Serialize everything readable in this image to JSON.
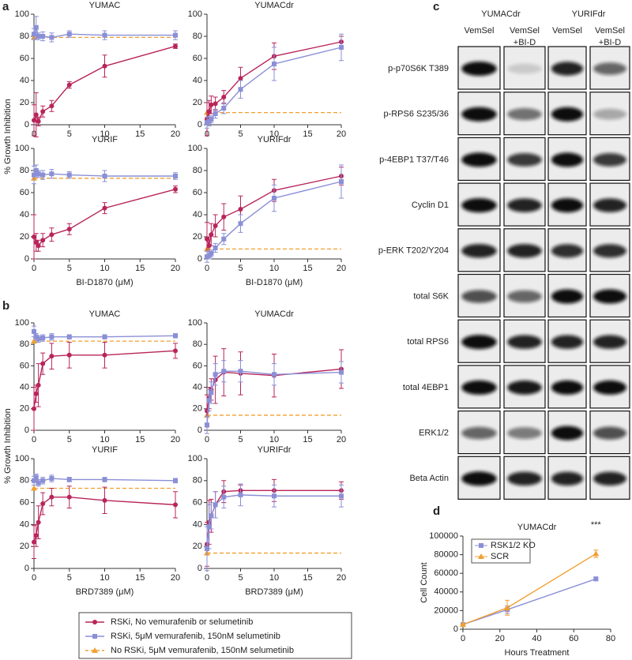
{
  "figure": {
    "panel_labels": [
      "a",
      "b",
      "c",
      "d"
    ]
  },
  "legend": {
    "entries": [
      {
        "name": "RSKi, No vemurafenib or selumetinib",
        "color": "#b8255a"
      },
      {
        "name": "RSKi, 5μM vemurafenib, 150nM selumetinib",
        "color": "#8a8fd6"
      },
      {
        "name": "No RSKi, 5μM vemurafenib, 150nM selumetinib",
        "color": "#f0a030"
      }
    ]
  },
  "chart_data": [
    {
      "type": "line",
      "title": "YUMAC",
      "ylabel": "% Growth Inhibition",
      "x": [
        0,
        0.31,
        0.63,
        1.25,
        2.5,
        5,
        10,
        20
      ],
      "series": [
        {
          "values": [
            4,
            9,
            3,
            12,
            17,
            36,
            53,
            71
          ],
          "errors": [
            14,
            20,
            4,
            5,
            5,
            3,
            10,
            2
          ]
        },
        {
          "values": [
            82,
            88,
            80,
            80,
            79,
            82,
            81,
            81
          ],
          "errors": [
            5,
            10,
            3,
            4,
            4,
            3,
            4,
            4
          ]
        }
      ],
      "reference": 79,
      "xlim": [
        0,
        20
      ],
      "ylim": [
        0,
        100
      ],
      "xticks": [
        0,
        5,
        10,
        15,
        20
      ],
      "yticks": [
        0,
        20,
        40,
        60,
        80,
        100
      ]
    },
    {
      "type": "line",
      "title": "YUMACdr",
      "x": [
        0,
        0.31,
        0.63,
        1.25,
        2.5,
        5,
        10,
        20
      ],
      "series": [
        {
          "values": [
            5,
            12,
            18,
            19,
            25,
            42,
            62,
            75
          ],
          "errors": [
            15,
            10,
            8,
            6,
            6,
            10,
            12,
            5
          ]
        },
        {
          "values": [
            2,
            3,
            5,
            10,
            15,
            32,
            55,
            70
          ],
          "errors": [
            5,
            4,
            3,
            4,
            5,
            8,
            15,
            12
          ]
        }
      ],
      "reference": 11,
      "xlim": [
        0,
        20
      ],
      "ylim": [
        0,
        100
      ],
      "xticks": [
        0,
        5,
        10,
        15,
        20
      ],
      "yticks": [
        0,
        20,
        40,
        60,
        80,
        100
      ]
    },
    {
      "type": "line",
      "title": "YURIF",
      "xlabel": "BI-D1870 (μM)",
      "x": [
        0,
        0.31,
        0.63,
        1.25,
        2.5,
        5,
        10,
        20
      ],
      "series": [
        {
          "values": [
            20,
            15,
            12,
            17,
            22,
            27,
            46,
            63
          ],
          "errors": [
            20,
            8,
            5,
            6,
            6,
            5,
            5,
            3
          ]
        },
        {
          "values": [
            76,
            80,
            77,
            76,
            77,
            76,
            75,
            75
          ],
          "errors": [
            8,
            5,
            3,
            4,
            4,
            3,
            5,
            3
          ]
        }
      ],
      "reference": 73,
      "xlim": [
        0,
        20
      ],
      "ylim": [
        0,
        100
      ],
      "xticks": [
        0,
        5,
        10,
        15,
        20
      ],
      "yticks": [
        0,
        20,
        40,
        60,
        80,
        100
      ]
    },
    {
      "type": "line",
      "title": "YURIFdr",
      "xlabel": "BI-D1870 (μM)",
      "x": [
        0,
        0.31,
        0.63,
        1.25,
        2.5,
        5,
        10,
        20
      ],
      "series": [
        {
          "values": [
            18,
            12,
            22,
            30,
            38,
            45,
            62,
            75
          ],
          "errors": [
            15,
            8,
            10,
            10,
            12,
            12,
            10,
            8
          ]
        },
        {
          "values": [
            2,
            3,
            5,
            10,
            18,
            32,
            55,
            70
          ],
          "errors": [
            5,
            3,
            3,
            4,
            5,
            8,
            12,
            15
          ]
        }
      ],
      "reference": 9,
      "xlim": [
        0,
        20
      ],
      "ylim": [
        0,
        100
      ],
      "xticks": [
        0,
        5,
        10,
        15,
        20
      ],
      "yticks": [
        0,
        20,
        40,
        60,
        80,
        100
      ]
    },
    {
      "type": "line",
      "title": "YUMAC",
      "ylabel": "% Growth Inhibition",
      "x": [
        0,
        0.31,
        0.63,
        1.25,
        2.5,
        5,
        10,
        20
      ],
      "series": [
        {
          "values": [
            20,
            34,
            42,
            62,
            69,
            70,
            70,
            74
          ],
          "errors": [
            20,
            8,
            20,
            10,
            12,
            12,
            12,
            7
          ]
        },
        {
          "values": [
            92,
            87,
            85,
            86,
            87,
            87,
            87,
            88
          ],
          "errors": [
            5,
            3,
            3,
            3,
            3,
            2,
            2,
            2
          ]
        }
      ],
      "reference": 83,
      "xlim": [
        0,
        20
      ],
      "ylim": [
        0,
        100
      ],
      "xticks": [
        0,
        5,
        10,
        15,
        20
      ],
      "yticks": [
        0,
        20,
        40,
        60,
        80,
        100
      ]
    },
    {
      "type": "line",
      "title": "YUMACdr",
      "x": [
        0,
        0.31,
        0.63,
        1.25,
        2.5,
        5,
        10,
        20
      ],
      "series": [
        {
          "values": [
            18,
            30,
            38,
            47,
            54,
            53,
            51,
            57
          ],
          "errors": [
            15,
            10,
            10,
            22,
            22,
            20,
            20,
            18
          ]
        },
        {
          "values": [
            5,
            28,
            35,
            52,
            55,
            55,
            52,
            54
          ],
          "errors": [
            8,
            10,
            10,
            10,
            10,
            10,
            10,
            10
          ]
        }
      ],
      "reference": 14,
      "xlim": [
        0,
        20
      ],
      "ylim": [
        0,
        100
      ],
      "xticks": [
        0,
        5,
        10,
        15,
        20
      ],
      "yticks": [
        0,
        20,
        40,
        60,
        80,
        100
      ]
    },
    {
      "type": "line",
      "title": "YURIF",
      "xlabel": "BRD7389 (μM)",
      "x": [
        0,
        0.31,
        0.63,
        1.25,
        2.5,
        5,
        10,
        20
      ],
      "series": [
        {
          "values": [
            24,
            30,
            42,
            59,
            65,
            65,
            62,
            58
          ],
          "errors": [
            15,
            10,
            15,
            10,
            8,
            10,
            12,
            12
          ]
        },
        {
          "values": [
            80,
            83,
            78,
            80,
            82,
            81,
            81,
            80
          ],
          "errors": [
            4,
            3,
            3,
            3,
            3,
            2,
            2,
            2
          ]
        }
      ],
      "reference": 73,
      "xlim": [
        0,
        20
      ],
      "ylim": [
        0,
        100
      ],
      "xticks": [
        0,
        5,
        10,
        15,
        20
      ],
      "yticks": [
        0,
        20,
        40,
        60,
        80,
        100
      ]
    },
    {
      "type": "line",
      "title": "YURIFdr",
      "xlabel": "BRD7389 (μM)",
      "x": [
        0,
        0.31,
        0.63,
        1.25,
        2.5,
        5,
        10,
        20
      ],
      "series": [
        {
          "values": [
            22,
            42,
            48,
            58,
            70,
            71,
            71,
            71
          ],
          "errors": [
            20,
            20,
            15,
            12,
            10,
            5,
            10,
            8
          ]
        },
        {
          "values": [
            18,
            38,
            48,
            58,
            65,
            67,
            66,
            66
          ],
          "errors": [
            20,
            20,
            12,
            12,
            10,
            10,
            10,
            10
          ]
        }
      ],
      "reference": 14,
      "xlim": [
        0,
        20
      ],
      "ylim": [
        0,
        100
      ],
      "xticks": [
        0,
        5,
        10,
        15,
        20
      ],
      "yticks": [
        0,
        20,
        40,
        60,
        80,
        100
      ]
    },
    {
      "type": "line",
      "title": "YUMACdr",
      "xlabel": "Hours Treatment",
      "ylabel": "Cell Count",
      "annotation": "***",
      "x": [
        0,
        24,
        72
      ],
      "series": [
        {
          "name": "RSK1/2 KO",
          "color": "#8a8fd6",
          "marker": "square",
          "values": [
            5000,
            21000,
            54000
          ],
          "errors": [
            500,
            4000,
            2000
          ]
        },
        {
          "name": "SCR",
          "color": "#f0a030",
          "marker": "triangle",
          "values": [
            5000,
            23000,
            81000
          ],
          "errors": [
            500,
            8000,
            4000
          ]
        }
      ],
      "xlim": [
        0,
        80
      ],
      "ylim": [
        0,
        100000
      ],
      "xticks": [
        0,
        20,
        40,
        60,
        80
      ],
      "yticks": [
        0,
        20000,
        40000,
        60000,
        80000,
        100000
      ]
    }
  ],
  "blot": {
    "cell_lines": [
      "YUMACdr",
      "YURIFdr"
    ],
    "conditions": [
      [
        "VemSel"
      ],
      [
        "VemSel",
        "+BI-D"
      ],
      [
        "VemSel"
      ],
      [
        "VemSel",
        "+BI-D"
      ]
    ],
    "rows": [
      "p-p70S6K T389",
      "p-RPS6 S235/36",
      "p-4EBP1 T37/T46",
      "Cyclin D1",
      "p-ERK  T202/Y204",
      "total S6K",
      "total RPS6",
      "total 4EBP1",
      "ERK1/2",
      "Beta Actin"
    ]
  }
}
